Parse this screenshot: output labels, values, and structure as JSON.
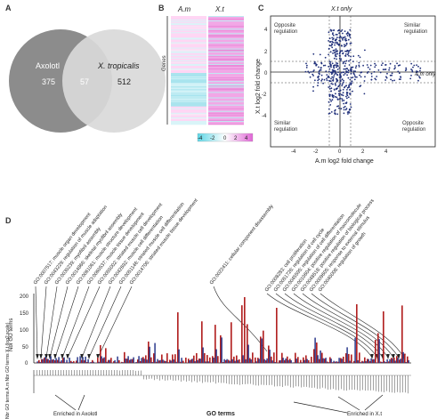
{
  "panel_labels": {
    "a": "A",
    "b": "B",
    "c": "C",
    "d": "D"
  },
  "venn": {
    "left_label": "Axolotl",
    "right_label": "X. tropicalis",
    "left_only": "375",
    "overlap": "57",
    "right_only": "512",
    "left_color": "#8c8c8c",
    "right_color": "#d7d7d7"
  },
  "heatmap": {
    "col1": "A.m",
    "col2": "X.t",
    "ylabel": "Genes",
    "scale_ticks": [
      "-4",
      "-2",
      "0",
      "2",
      "4"
    ]
  },
  "scatter": {
    "top_label": "X.t only",
    "right_label": "A.m only",
    "xlabel": "A.m log2 fold change",
    "ylabel": "X.t log2 fold change",
    "q_tl": "Opposite regulation",
    "q_tr": "Similar regulation",
    "q_bl": "Similar regulation",
    "q_br": "Opposite regulation",
    "xticks": [
      "-4",
      "-2",
      "0",
      "2",
      "4"
    ],
    "yticks": [
      "4",
      "2",
      "0",
      "-2",
      "-4"
    ],
    "point_color": "#1f2f7a"
  },
  "go": {
    "ylabel": "Nbr GO terms",
    "yticks": [
      "200",
      "150",
      "100",
      "50",
      "0"
    ],
    "lower_ylabel": "Nbr GO terms A.m Nbr GO terms X.t (log2 scale)",
    "xlabel": "GO terms",
    "enriched_left": "Enriched in Axolotl",
    "enriched_right": "Enriched in X.t",
    "left_terms": [
      "GO:0007517: muscle organ development",
      "GO:0043229: regulation of muscle adaptation",
      "GO:0030239: myofibril assembly",
      "GO:0014866: skeletal myofibril assembly",
      "GO:0061061: muscle structure development",
      "GO:0060537: muscle tissue development",
      "GO:0055002: striated muscle cell development",
      "GO:0042692: muscle cell differentiation",
      "GO:0051146: striated muscle cell differentiation",
      "GO:0014706: striated muscle tissue development"
    ],
    "middle_term": "GO:0022411: cellular component disassembly",
    "right_terms": [
      "GO:0008283: cell proliferation",
      "GO:0051726: regulation of cell cycle",
      "GO:0045595: regulation of cell differentiation",
      "GO:0010604: positive regulation of macromolecule",
      "GO:0048518: positive regulation of biological process",
      "GO:0009605: response to external stimulus",
      "GO:0040008: regulation of growth"
    ],
    "bar_red": "#b22222",
    "bar_blue": "#2b3a8c"
  }
}
